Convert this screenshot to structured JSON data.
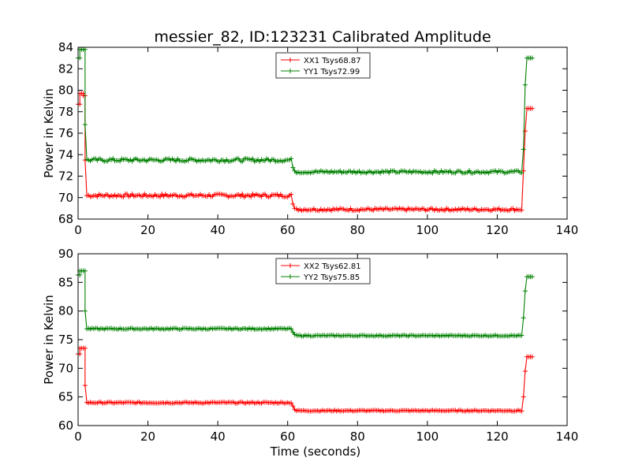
{
  "title": "messier_82, ID:123231 Calibrated Amplitude",
  "chart_data": [
    {
      "type": "line",
      "ylabel": "Power in Kelvin",
      "xlabel": "",
      "xlim": [
        0,
        140
      ],
      "ylim": [
        68,
        84
      ],
      "xticks": [
        0,
        20,
        40,
        60,
        80,
        100,
        120,
        140
      ],
      "yticks": [
        68,
        70,
        72,
        74,
        76,
        78,
        80,
        82,
        84
      ],
      "legend_position": "top-center",
      "series": [
        {
          "name": "XX1 Tsys68.87",
          "color": "#ff0000",
          "segments": [
            {
              "x_start": 0,
              "x_end": 0.5,
              "y": 78.7
            },
            {
              "x_start": 0.5,
              "x_end": 1.5,
              "y": 79.7
            },
            {
              "x_start": 1.5,
              "x_end": 2,
              "y": 79.5
            },
            {
              "x_start": 2.5,
              "x_end": 61,
              "y": 70.2,
              "jitter": 0.15
            },
            {
              "x_start": 62.5,
              "x_end": 127,
              "y": 68.9,
              "jitter": 0.12
            },
            {
              "x_start": 127.5,
              "x_end": 127.5,
              "y": 72.5
            },
            {
              "x_start": 128,
              "x_end": 128,
              "y": 76.2
            },
            {
              "x_start": 128.5,
              "x_end": 130,
              "y": 78.3
            }
          ],
          "ramp_points": [
            [
              2,
              73.5
            ],
            [
              61.5,
              69.4
            ],
            [
              62,
              69.0
            ]
          ]
        },
        {
          "name": "YY1 Tsys72.99",
          "color": "#008000",
          "segments": [
            {
              "x_start": 0,
              "x_end": 0.5,
              "y": 83.0
            },
            {
              "x_start": 0.5,
              "x_end": 2,
              "y": 83.8
            },
            {
              "x_start": 2.5,
              "x_end": 61,
              "y": 73.5,
              "jitter": 0.15
            },
            {
              "x_start": 62.5,
              "x_end": 127,
              "y": 72.4,
              "jitter": 0.12
            },
            {
              "x_start": 127.5,
              "x_end": 127.5,
              "y": 74.5
            },
            {
              "x_start": 128,
              "x_end": 128,
              "y": 80.5
            },
            {
              "x_start": 128.5,
              "x_end": 130,
              "y": 83.0
            }
          ],
          "ramp_points": [
            [
              2,
              76.8
            ],
            [
              61.5,
              72.8
            ],
            [
              62,
              72.5
            ]
          ]
        }
      ]
    },
    {
      "type": "line",
      "ylabel": "Power in Kelvin",
      "xlabel": "Time (seconds)",
      "xlim": [
        0,
        140
      ],
      "ylim": [
        60,
        90
      ],
      "xticks": [
        0,
        20,
        40,
        60,
        80,
        100,
        120,
        140
      ],
      "yticks": [
        60,
        65,
        70,
        75,
        80,
        85,
        90
      ],
      "legend_position": "top-center",
      "series": [
        {
          "name": "XX2 Tsys62.81",
          "color": "#ff0000",
          "segments": [
            {
              "x_start": 0,
              "x_end": 0.5,
              "y": 72.5
            },
            {
              "x_start": 0.5,
              "x_end": 2,
              "y": 73.5
            },
            {
              "x_start": 2.5,
              "x_end": 61,
              "y": 64.0,
              "jitter": 0.12
            },
            {
              "x_start": 62.5,
              "x_end": 127,
              "y": 62.6,
              "jitter": 0.1
            },
            {
              "x_start": 127.5,
              "x_end": 127.5,
              "y": 65.0
            },
            {
              "x_start": 128,
              "x_end": 128,
              "y": 69.5
            },
            {
              "x_start": 128.5,
              "x_end": 130,
              "y": 72.0
            }
          ],
          "ramp_points": [
            [
              2,
              67.0
            ],
            [
              61.5,
              63.4
            ],
            [
              62,
              62.8
            ]
          ]
        },
        {
          "name": "YY2 Tsys75.85",
          "color": "#008000",
          "segments": [
            {
              "x_start": 0,
              "x_end": 0.5,
              "y": 86.3
            },
            {
              "x_start": 0.5,
              "x_end": 2,
              "y": 87.0
            },
            {
              "x_start": 2.5,
              "x_end": 61,
              "y": 76.9,
              "jitter": 0.12
            },
            {
              "x_start": 62.5,
              "x_end": 127,
              "y": 75.7,
              "jitter": 0.1
            },
            {
              "x_start": 127.5,
              "x_end": 127.5,
              "y": 78.8
            },
            {
              "x_start": 128,
              "x_end": 128,
              "y": 83.5
            },
            {
              "x_start": 128.5,
              "x_end": 130,
              "y": 86.0
            }
          ],
          "ramp_points": [
            [
              2,
              80.0
            ],
            [
              61.5,
              76.3
            ],
            [
              62,
              75.9
            ]
          ]
        }
      ]
    }
  ]
}
